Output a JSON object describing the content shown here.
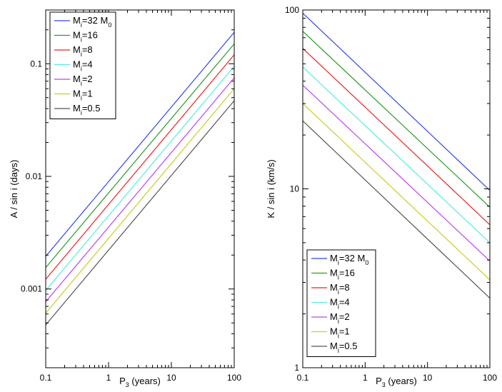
{
  "chart_data": [
    {
      "type": "line",
      "scale": "log-log",
      "xlabel": {
        "main": "P",
        "sub": "3",
        "rest": " (years)"
      },
      "ylabel": "A / sin i (days)",
      "xlim": [
        0.1,
        100
      ],
      "ylim": [
        0.0002,
        0.3
      ],
      "xticks": [
        0.1,
        1,
        10,
        100
      ],
      "xtick_labels": [
        "0.1",
        "1",
        "10",
        "100"
      ],
      "yticks": [
        0.001,
        0.01,
        0.1
      ],
      "ytick_labels": [
        "0.001",
        "0.01",
        "0.1"
      ],
      "legend_position": "top-left",
      "series": [
        {
          "name": "Mi=32 M0",
          "label_main": "M",
          "label_sub": "i",
          "label_rest": "=32 M",
          "label_sub2": "0",
          "color": "#3344ee",
          "x": [
            0.1,
            100
          ],
          "y": [
            0.00195,
            0.19
          ]
        },
        {
          "name": "Mi=16",
          "label_main": "M",
          "label_sub": "i",
          "label_rest": "=16",
          "color": "#2a9a2a",
          "x": [
            0.1,
            100
          ],
          "y": [
            0.00155,
            0.15
          ]
        },
        {
          "name": "Mi=8",
          "label_main": "M",
          "label_sub": "i",
          "label_rest": "=8",
          "color": "#ee2222",
          "x": [
            0.1,
            100
          ],
          "y": [
            0.00122,
            0.12
          ]
        },
        {
          "name": "Mi=4",
          "label_main": "M",
          "label_sub": "i",
          "label_rest": "=4",
          "color": "#55eedd",
          "x": [
            0.1,
            100
          ],
          "y": [
            0.00097,
            0.095
          ]
        },
        {
          "name": "Mi=2",
          "label_main": "M",
          "label_sub": "i",
          "label_rest": "=2",
          "color": "#bb44ee",
          "x": [
            0.1,
            100
          ],
          "y": [
            0.00077,
            0.075
          ]
        },
        {
          "name": "Mi=1",
          "label_main": "M",
          "label_sub": "i",
          "label_rest": "=1",
          "color": "#cccc22",
          "x": [
            0.1,
            100
          ],
          "y": [
            0.00061,
            0.06
          ]
        },
        {
          "name": "Mi=0.5",
          "label_main": "M",
          "label_sub": "i",
          "label_rest": "=0.5",
          "color": "#555555",
          "x": [
            0.1,
            100
          ],
          "y": [
            0.00048,
            0.047
          ]
        }
      ]
    },
    {
      "type": "line",
      "scale": "log-log",
      "xlabel": {
        "main": "P",
        "sub": "3",
        "rest": " (years)"
      },
      "ylabel": "K / sin i (km/s)",
      "xlim": [
        0.1,
        100
      ],
      "ylim": [
        1,
        100
      ],
      "xticks": [
        0.1,
        1,
        10,
        100
      ],
      "xtick_labels": [
        "0.1",
        "1",
        "10",
        "100"
      ],
      "yticks": [
        1,
        10,
        100
      ],
      "ytick_labels": [
        "1",
        "10",
        "100"
      ],
      "legend_position": "bottom-left",
      "series": [
        {
          "name": "Mi=32 M0",
          "label_main": "M",
          "label_sub": "i",
          "label_rest": "=32 M",
          "label_sub2": "0",
          "color": "#3344ee",
          "x": [
            0.1,
            100
          ],
          "y": [
            96,
            9.8
          ]
        },
        {
          "name": "Mi=16",
          "label_main": "M",
          "label_sub": "i",
          "label_rest": "=16",
          "color": "#2a9a2a",
          "x": [
            0.1,
            100
          ],
          "y": [
            76,
            7.9
          ]
        },
        {
          "name": "Mi=8",
          "label_main": "M",
          "label_sub": "i",
          "label_rest": "=8",
          "color": "#ee2222",
          "x": [
            0.1,
            100
          ],
          "y": [
            61,
            6.3
          ]
        },
        {
          "name": "Mi=4",
          "label_main": "M",
          "label_sub": "i",
          "label_rest": "=4",
          "color": "#55eedd",
          "x": [
            0.1,
            100
          ],
          "y": [
            48,
            5.0
          ]
        },
        {
          "name": "Mi=2",
          "label_main": "M",
          "label_sub": "i",
          "label_rest": "=2",
          "color": "#bb44ee",
          "x": [
            0.1,
            100
          ],
          "y": [
            38,
            3.95
          ]
        },
        {
          "name": "Mi=1",
          "label_main": "M",
          "label_sub": "i",
          "label_rest": "=1",
          "color": "#cccc22",
          "x": [
            0.1,
            100
          ],
          "y": [
            30,
            3.1
          ]
        },
        {
          "name": "Mi=0.5",
          "label_main": "M",
          "label_sub": "i",
          "label_rest": "=0.5",
          "color": "#555555",
          "x": [
            0.1,
            100
          ],
          "y": [
            24,
            2.45
          ]
        }
      ]
    }
  ]
}
